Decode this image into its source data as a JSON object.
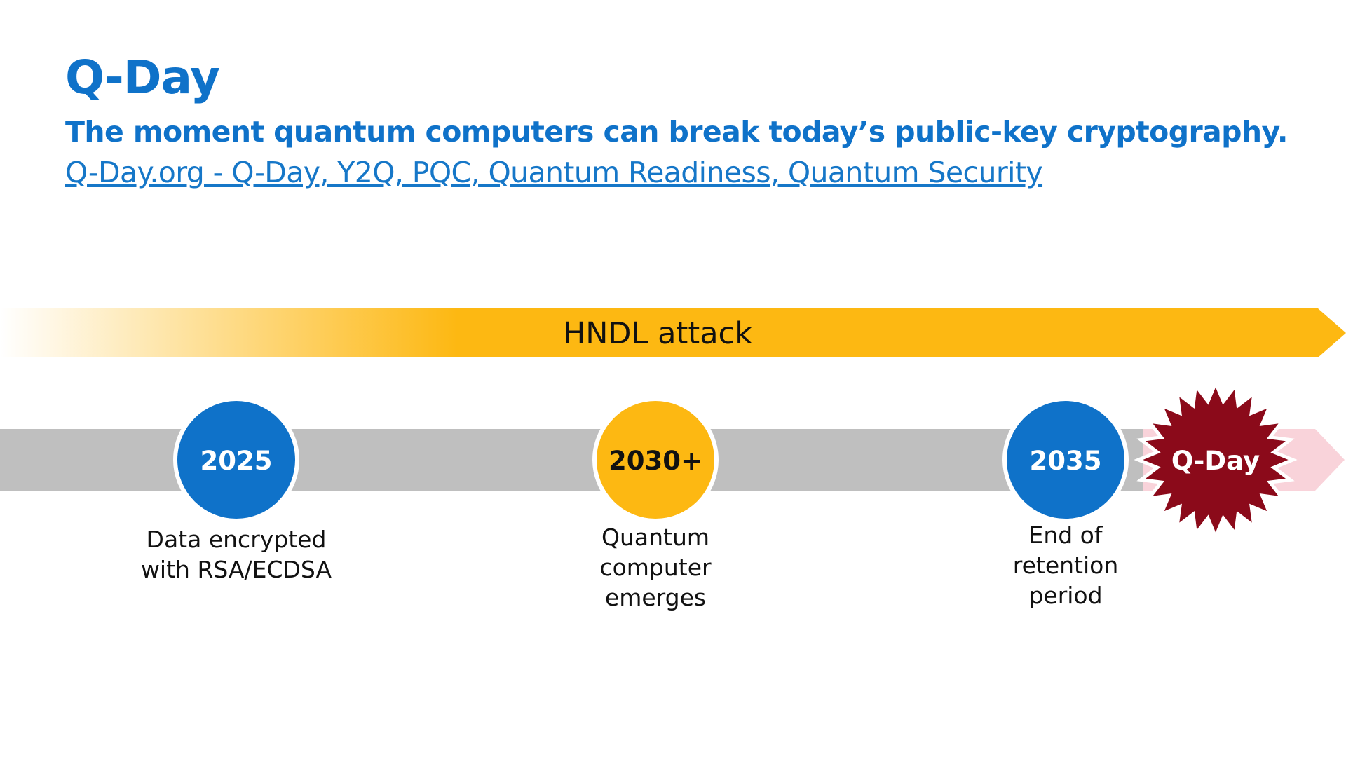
{
  "header": {
    "title": "Q-Day",
    "subtitle": "The moment quantum computers can break today’s public-key cryptography.",
    "link_text": "Q-Day.org - Q-Day, Y2Q, PQC, Quantum Readiness, Quantum Security"
  },
  "attack_band": {
    "label": "HNDL attack",
    "color": "#FDB812"
  },
  "milestones": [
    {
      "year": "2025",
      "caption": [
        "Data encrypted",
        "with RSA/ECDSA"
      ],
      "color": "#0F72C9",
      "text_color": "#FFFFFF"
    },
    {
      "year": "2030+",
      "caption": [
        "Quantum",
        "computer",
        "emerges"
      ],
      "color": "#FDB812",
      "text_color": "#111111"
    },
    {
      "year": "2035",
      "caption": [
        "End of",
        "retention",
        "period"
      ],
      "color": "#0F72C9",
      "text_color": "#FFFFFF"
    }
  ],
  "qday_badge": {
    "label": "Q-Day",
    "color": "#8B0A1A"
  },
  "colors": {
    "timeline": "#BFBFBF",
    "timeline_tip": "#F9D3DA",
    "accent_blue": "#0F72C9"
  }
}
